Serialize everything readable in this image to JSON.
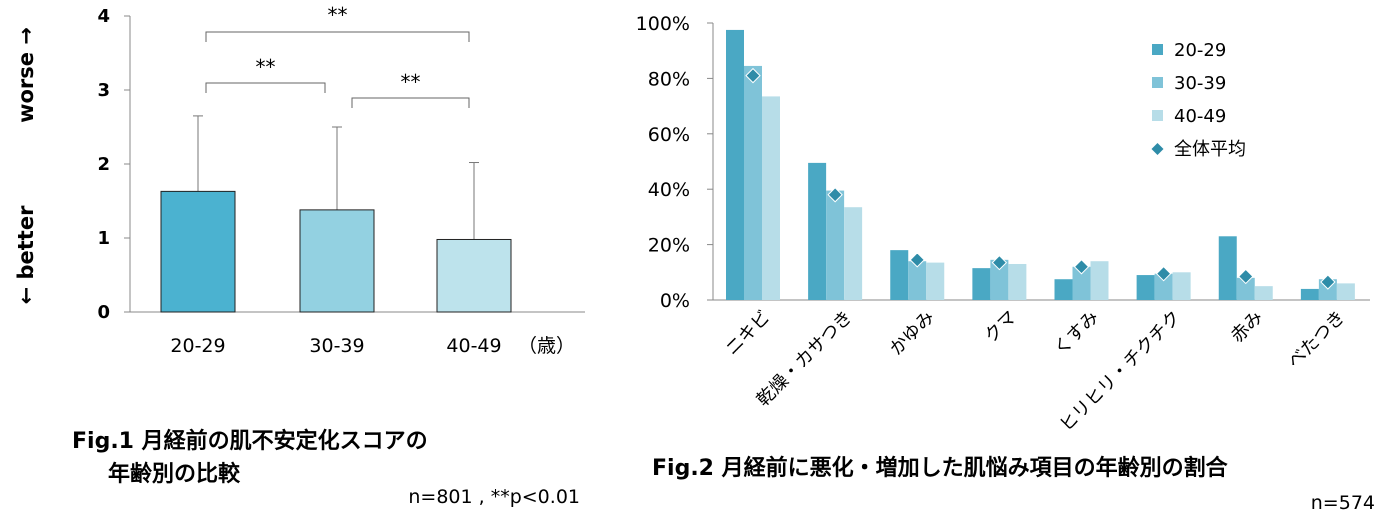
{
  "chart_data": [
    {
      "type": "bar",
      "categories": [
        "20-29",
        "30-39",
        "40-49"
      ],
      "x_unit": "（歳）",
      "values": [
        1.63,
        1.38,
        0.98
      ],
      "error_upper": [
        2.65,
        2.5,
        2.02
      ],
      "colors": [
        "#4bb2d0",
        "#93d1e1",
        "#bde3ec"
      ],
      "ylim": [
        0,
        4
      ],
      "yticks": [
        "0",
        "1",
        "2",
        "3",
        "4"
      ],
      "ylabel_top": "worse →",
      "ylabel_bottom": "← better",
      "significance": [
        {
          "from": "20-29",
          "to": "30-39",
          "label": "**"
        },
        {
          "from": "30-39",
          "to": "40-49",
          "label": "**"
        },
        {
          "from": "20-29",
          "to": "40-49",
          "label": "**"
        }
      ],
      "caption_line1": "Fig.1 月経前の肌不安定化スコアの",
      "caption_line2": "年齢別の比較",
      "note": "n=801 , **p<0.01"
    },
    {
      "type": "bar",
      "categories": [
        "ニキビ",
        "乾燥・カサつき",
        "かゆみ",
        "クマ",
        "くすみ",
        "ヒリヒリ・チクチク",
        "赤み",
        "べたつき"
      ],
      "series": [
        {
          "name": "20-29",
          "color": "#4aa8c4",
          "values": [
            97.5,
            49.5,
            18,
            11.5,
            7.5,
            9,
            23,
            4
          ]
        },
        {
          "name": "30-39",
          "color": "#7fc3d8",
          "values": [
            84.5,
            39.5,
            14,
            14.5,
            12,
            9.5,
            8,
            7.5
          ]
        },
        {
          "name": "40-49",
          "color": "#b7dde8",
          "values": [
            73.5,
            33.5,
            13.5,
            13,
            14,
            10,
            5,
            6
          ]
        }
      ],
      "average": {
        "name": "全体平均",
        "color": "#2e8ca8",
        "values": [
          81,
          38,
          14.5,
          13.5,
          12,
          9.5,
          8.5,
          6.5
        ]
      },
      "ylim": [
        0,
        100
      ],
      "yticks": [
        "0%",
        "20%",
        "40%",
        "60%",
        "80%",
        "100%"
      ],
      "caption": "Fig.2 月経前に悪化・増加した肌悩み項目の年齢別の割合",
      "note": "n=574"
    }
  ]
}
